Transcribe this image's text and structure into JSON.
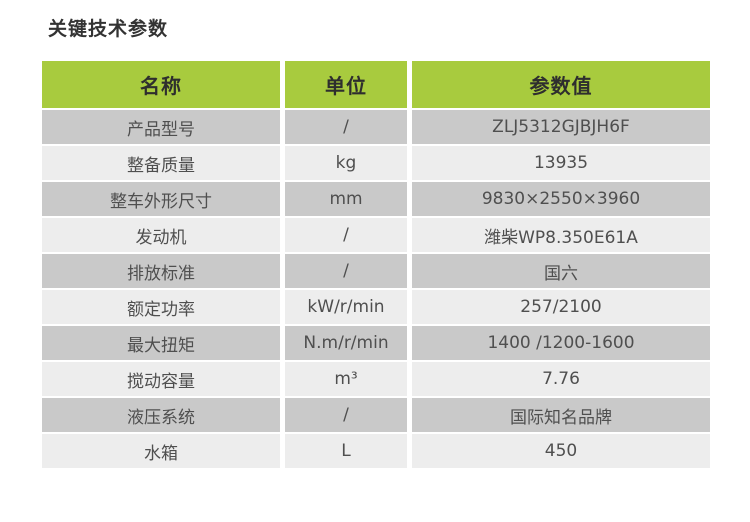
{
  "page": {
    "title": "关键技术参数"
  },
  "colors": {
    "header_bg": "#a8cb3e",
    "row_odd_bg": "#c9c9c9",
    "row_even_bg": "#ededed",
    "title_text": "#333333",
    "body_text": "#4f4f4f"
  },
  "table": {
    "headers": {
      "name": "名称",
      "unit": "单位",
      "value": "参数值"
    },
    "rows": [
      {
        "name": "产品型号",
        "unit": "/",
        "value": "ZLJ5312GJBJH6F"
      },
      {
        "name": "整备质量",
        "unit": "kg",
        "value": "13935"
      },
      {
        "name": "整车外形尺寸",
        "unit": "mm",
        "value": "9830×2550×3960"
      },
      {
        "name": "发动机",
        "unit": "/",
        "value": "潍柴WP8.350E61A"
      },
      {
        "name": "排放标准",
        "unit": "/",
        "value": "国六"
      },
      {
        "name": "额定功率",
        "unit": "kW/r/min",
        "value": "257/2100"
      },
      {
        "name": "最大扭矩",
        "unit": "N.m/r/min",
        "value": "1400 /1200-1600"
      },
      {
        "name": "搅动容量",
        "unit": "m³",
        "value": "7.76"
      },
      {
        "name": "液压系统",
        "unit": "/",
        "value": "国际知名品牌"
      },
      {
        "name": "水箱",
        "unit": "L",
        "value": "450"
      }
    ]
  }
}
